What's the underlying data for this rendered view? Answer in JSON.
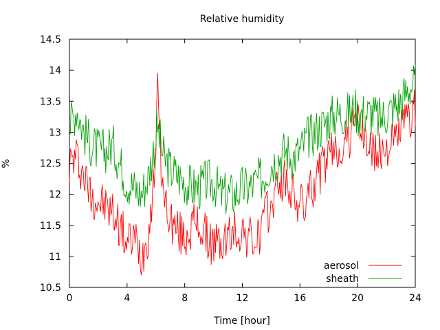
{
  "chart_data": {
    "type": "line",
    "title": "Relative humidity",
    "xlabel": "Time [hour]",
    "ylabel": "%",
    "xlim": [
      0,
      24
    ],
    "ylim": [
      10.5,
      14.5
    ],
    "x_ticks": [
      0,
      4,
      8,
      12,
      16,
      20,
      24
    ],
    "y_ticks": [
      10.5,
      11,
      11.5,
      12,
      12.5,
      13,
      13.5,
      14,
      14.5
    ],
    "grid": false,
    "legend_position": "bottom-right",
    "series": [
      {
        "name": "aerosol",
        "color": "#ff0000",
        "x": [
          0,
          0.5,
          1,
          1.5,
          2,
          2.5,
          3,
          3.5,
          4,
          4.5,
          5,
          5.5,
          5.9,
          6.1,
          6.5,
          7,
          7.5,
          8,
          8.5,
          9,
          9.5,
          10,
          10.5,
          11,
          11.5,
          12,
          12.5,
          13,
          13.5,
          14,
          14.5,
          15,
          15.5,
          16,
          16.5,
          17,
          17.5,
          18,
          18.5,
          19,
          19.5,
          19.8,
          20,
          20.5,
          21,
          21.5,
          22,
          22.5,
          23,
          23.5,
          24
        ],
        "y": [
          12.5,
          12.6,
          12.3,
          12.0,
          11.9,
          11.8,
          11.7,
          11.5,
          11.2,
          11.3,
          11.0,
          11.4,
          12.3,
          13.7,
          12.0,
          11.6,
          11.4,
          11.3,
          11.5,
          11.5,
          11.3,
          11.2,
          11.2,
          11.3,
          11.4,
          11.4,
          11.3,
          11.2,
          11.6,
          11.8,
          12.2,
          12.2,
          12.0,
          11.8,
          11.9,
          12.2,
          12.4,
          12.6,
          12.7,
          12.8,
          12.9,
          13.5,
          13.1,
          12.9,
          12.7,
          12.6,
          12.8,
          12.8,
          13.1,
          13.2,
          13.4
        ]
      },
      {
        "name": "sheath",
        "color": "#00a000",
        "x": [
          0,
          0.5,
          1,
          1.5,
          2,
          2.5,
          3,
          3.5,
          4,
          4.5,
          5,
          5.5,
          5.9,
          6.1,
          6.5,
          7,
          7.5,
          8,
          8.5,
          9,
          9.5,
          10,
          10.5,
          11,
          11.5,
          12,
          12.5,
          13,
          13.5,
          14,
          14.5,
          15,
          15.5,
          16,
          16.5,
          17,
          17.5,
          18,
          18.5,
          19,
          19.5,
          19.8,
          20,
          20.5,
          21,
          21.5,
          22,
          22.5,
          23,
          23.5,
          24
        ],
        "y": [
          13.1,
          13.4,
          13.0,
          12.8,
          12.7,
          12.7,
          12.8,
          12.5,
          12.2,
          12.1,
          12.0,
          12.3,
          12.8,
          13.1,
          12.6,
          12.4,
          12.3,
          12.2,
          12.1,
          12.1,
          12.2,
          12.2,
          12.0,
          12.0,
          12.0,
          12.1,
          12.1,
          12.2,
          12.3,
          12.5,
          12.6,
          12.7,
          12.6,
          12.7,
          12.9,
          13.0,
          13.1,
          13.2,
          13.3,
          13.3,
          13.3,
          13.4,
          13.3,
          13.3,
          13.3,
          13.2,
          13.3,
          13.4,
          13.5,
          13.7,
          13.8
        ]
      }
    ]
  }
}
